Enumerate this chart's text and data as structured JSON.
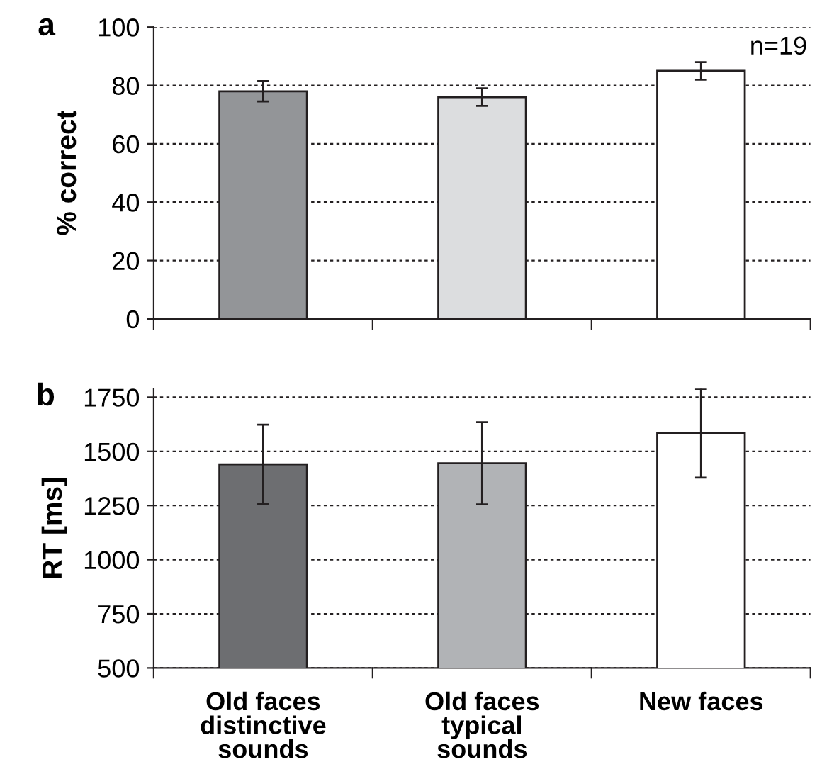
{
  "chart_data": [
    {
      "type": "bar",
      "categories": [
        null,
        null,
        null
      ],
      "ylabel": "% correct",
      "annotations": [
        "a",
        "n=19"
      ],
      "values": [
        78,
        76,
        85
      ],
      "errors": [
        3.5,
        3,
        3
      ],
      "colors": [
        "#939598",
        "#dcdddf",
        "#ffffff"
      ],
      "ylim": [
        0,
        100
      ],
      "yticks": [
        0,
        20,
        40,
        60,
        80,
        100
      ],
      "grid": "y",
      "tick_labels": "y"
    },
    {
      "type": "bar",
      "categories": [
        "Old faces\ndistinctive\nsounds",
        "Old faces\ntypical\nsounds",
        "New faces"
      ],
      "ylabel": "RT [ms]",
      "annotations": [
        "b"
      ],
      "values": [
        1440,
        1445,
        1584
      ],
      "errors": [
        183,
        190,
        205
      ],
      "colors": [
        "#6d6e71",
        "#b1b3b6",
        "#ffffff"
      ],
      "ylim": [
        500,
        1790
      ],
      "yticks": [
        500,
        750,
        1000,
        1250,
        1500,
        1750
      ],
      "grid": "y"
    }
  ]
}
